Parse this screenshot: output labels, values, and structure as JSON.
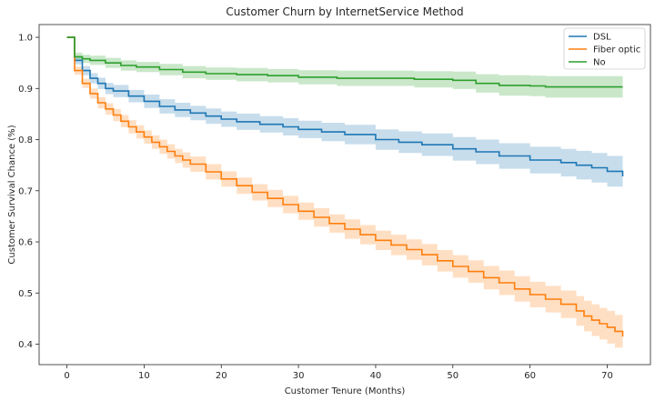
{
  "chart_data": {
    "type": "line",
    "title": "Customer Churn by InternetService Method",
    "xlabel": "Customer Tenure (Months)",
    "ylabel": "Customer Survival Chance (%)",
    "xlim": [
      -3.6,
      75.6
    ],
    "ylim": [
      0.36,
      1.025
    ],
    "xticks": [
      0,
      10,
      20,
      30,
      40,
      50,
      60,
      70
    ],
    "yticks": [
      0.4,
      0.5,
      0.6,
      0.7,
      0.8,
      0.9,
      1.0
    ],
    "yticklabels": [
      "0.4",
      "0.5",
      "0.6",
      "0.7",
      "0.8",
      "0.9",
      "1.0"
    ],
    "grid": false,
    "legend_position": "top-right",
    "series": [
      {
        "name": "DSL",
        "color": "#1f77b4",
        "x": [
          0,
          1,
          2,
          3,
          4,
          5,
          6,
          8,
          10,
          12,
          14,
          16,
          18,
          20,
          22,
          25,
          28,
          30,
          33,
          36,
          40,
          43,
          46,
          50,
          53,
          56,
          60,
          64,
          66,
          68,
          70,
          72
        ],
        "y": [
          1.0,
          0.955,
          0.935,
          0.92,
          0.91,
          0.9,
          0.895,
          0.885,
          0.875,
          0.865,
          0.858,
          0.852,
          0.846,
          0.84,
          0.835,
          0.83,
          0.825,
          0.82,
          0.815,
          0.81,
          0.8,
          0.795,
          0.79,
          0.782,
          0.776,
          0.768,
          0.76,
          0.755,
          0.75,
          0.745,
          0.738,
          0.728
        ],
        "ci_upper": [
          1.0,
          0.962,
          0.944,
          0.93,
          0.921,
          0.911,
          0.907,
          0.897,
          0.888,
          0.879,
          0.872,
          0.866,
          0.861,
          0.855,
          0.851,
          0.846,
          0.842,
          0.837,
          0.833,
          0.829,
          0.82,
          0.816,
          0.812,
          0.805,
          0.8,
          0.793,
          0.786,
          0.782,
          0.778,
          0.774,
          0.768,
          0.76
        ],
        "ci_lower": [
          1.0,
          0.947,
          0.926,
          0.91,
          0.899,
          0.889,
          0.883,
          0.873,
          0.862,
          0.851,
          0.844,
          0.838,
          0.831,
          0.825,
          0.819,
          0.814,
          0.808,
          0.803,
          0.797,
          0.791,
          0.78,
          0.774,
          0.768,
          0.759,
          0.752,
          0.743,
          0.734,
          0.728,
          0.722,
          0.716,
          0.708,
          0.695
        ]
      },
      {
        "name": "Fiber optic",
        "color": "#ff7f0e",
        "x": [
          0,
          1,
          2,
          3,
          4,
          5,
          6,
          7,
          8,
          9,
          10,
          11,
          12,
          13,
          14,
          15,
          16,
          18,
          20,
          22,
          24,
          26,
          28,
          30,
          32,
          34,
          36,
          38,
          40,
          42,
          44,
          46,
          48,
          50,
          52,
          54,
          56,
          58,
          60,
          62,
          64,
          66,
          67,
          68,
          69,
          70,
          71,
          72
        ],
        "y": [
          1.0,
          0.935,
          0.91,
          0.89,
          0.872,
          0.86,
          0.848,
          0.836,
          0.825,
          0.815,
          0.805,
          0.795,
          0.786,
          0.777,
          0.768,
          0.76,
          0.752,
          0.737,
          0.723,
          0.71,
          0.697,
          0.685,
          0.673,
          0.66,
          0.648,
          0.636,
          0.625,
          0.614,
          0.603,
          0.594,
          0.585,
          0.575,
          0.563,
          0.552,
          0.542,
          0.53,
          0.52,
          0.508,
          0.497,
          0.488,
          0.478,
          0.465,
          0.455,
          0.447,
          0.44,
          0.433,
          0.425,
          0.415
        ],
        "ci_upper": [
          1.0,
          0.943,
          0.919,
          0.9,
          0.883,
          0.871,
          0.86,
          0.848,
          0.838,
          0.828,
          0.818,
          0.808,
          0.8,
          0.791,
          0.782,
          0.775,
          0.767,
          0.752,
          0.738,
          0.726,
          0.713,
          0.702,
          0.69,
          0.677,
          0.666,
          0.654,
          0.644,
          0.633,
          0.622,
          0.614,
          0.605,
          0.596,
          0.584,
          0.574,
          0.564,
          0.553,
          0.544,
          0.533,
          0.522,
          0.514,
          0.505,
          0.494,
          0.485,
          0.478,
          0.471,
          0.465,
          0.457,
          0.448
        ],
        "ci_lower": [
          1.0,
          0.927,
          0.901,
          0.88,
          0.861,
          0.849,
          0.836,
          0.824,
          0.812,
          0.802,
          0.792,
          0.782,
          0.772,
          0.763,
          0.754,
          0.745,
          0.737,
          0.722,
          0.708,
          0.694,
          0.681,
          0.668,
          0.656,
          0.643,
          0.63,
          0.618,
          0.606,
          0.595,
          0.584,
          0.574,
          0.565,
          0.554,
          0.542,
          0.53,
          0.52,
          0.507,
          0.496,
          0.483,
          0.472,
          0.462,
          0.451,
          0.436,
          0.425,
          0.416,
          0.409,
          0.401,
          0.393,
          0.382
        ]
      },
      {
        "name": "No",
        "color": "#2ca02c",
        "x": [
          0,
          1,
          2,
          3,
          5,
          7,
          9,
          12,
          15,
          18,
          22,
          26,
          30,
          35,
          40,
          45,
          50,
          53,
          56,
          60,
          62,
          65,
          68,
          70,
          72
        ],
        "y": [
          1.0,
          0.962,
          0.958,
          0.955,
          0.95,
          0.945,
          0.942,
          0.937,
          0.932,
          0.929,
          0.927,
          0.925,
          0.922,
          0.92,
          0.92,
          0.918,
          0.916,
          0.91,
          0.906,
          0.905,
          0.903,
          0.903,
          0.903,
          0.903,
          0.903
        ],
        "ci_upper": [
          1.0,
          0.97,
          0.966,
          0.964,
          0.96,
          0.955,
          0.952,
          0.948,
          0.944,
          0.941,
          0.94,
          0.938,
          0.936,
          0.935,
          0.935,
          0.934,
          0.933,
          0.928,
          0.926,
          0.925,
          0.924,
          0.924,
          0.924,
          0.924,
          0.924
        ],
        "ci_lower": [
          1.0,
          0.954,
          0.95,
          0.946,
          0.94,
          0.935,
          0.932,
          0.926,
          0.92,
          0.917,
          0.914,
          0.912,
          0.908,
          0.905,
          0.905,
          0.902,
          0.899,
          0.892,
          0.886,
          0.885,
          0.882,
          0.882,
          0.882,
          0.882,
          0.88
        ]
      }
    ]
  }
}
